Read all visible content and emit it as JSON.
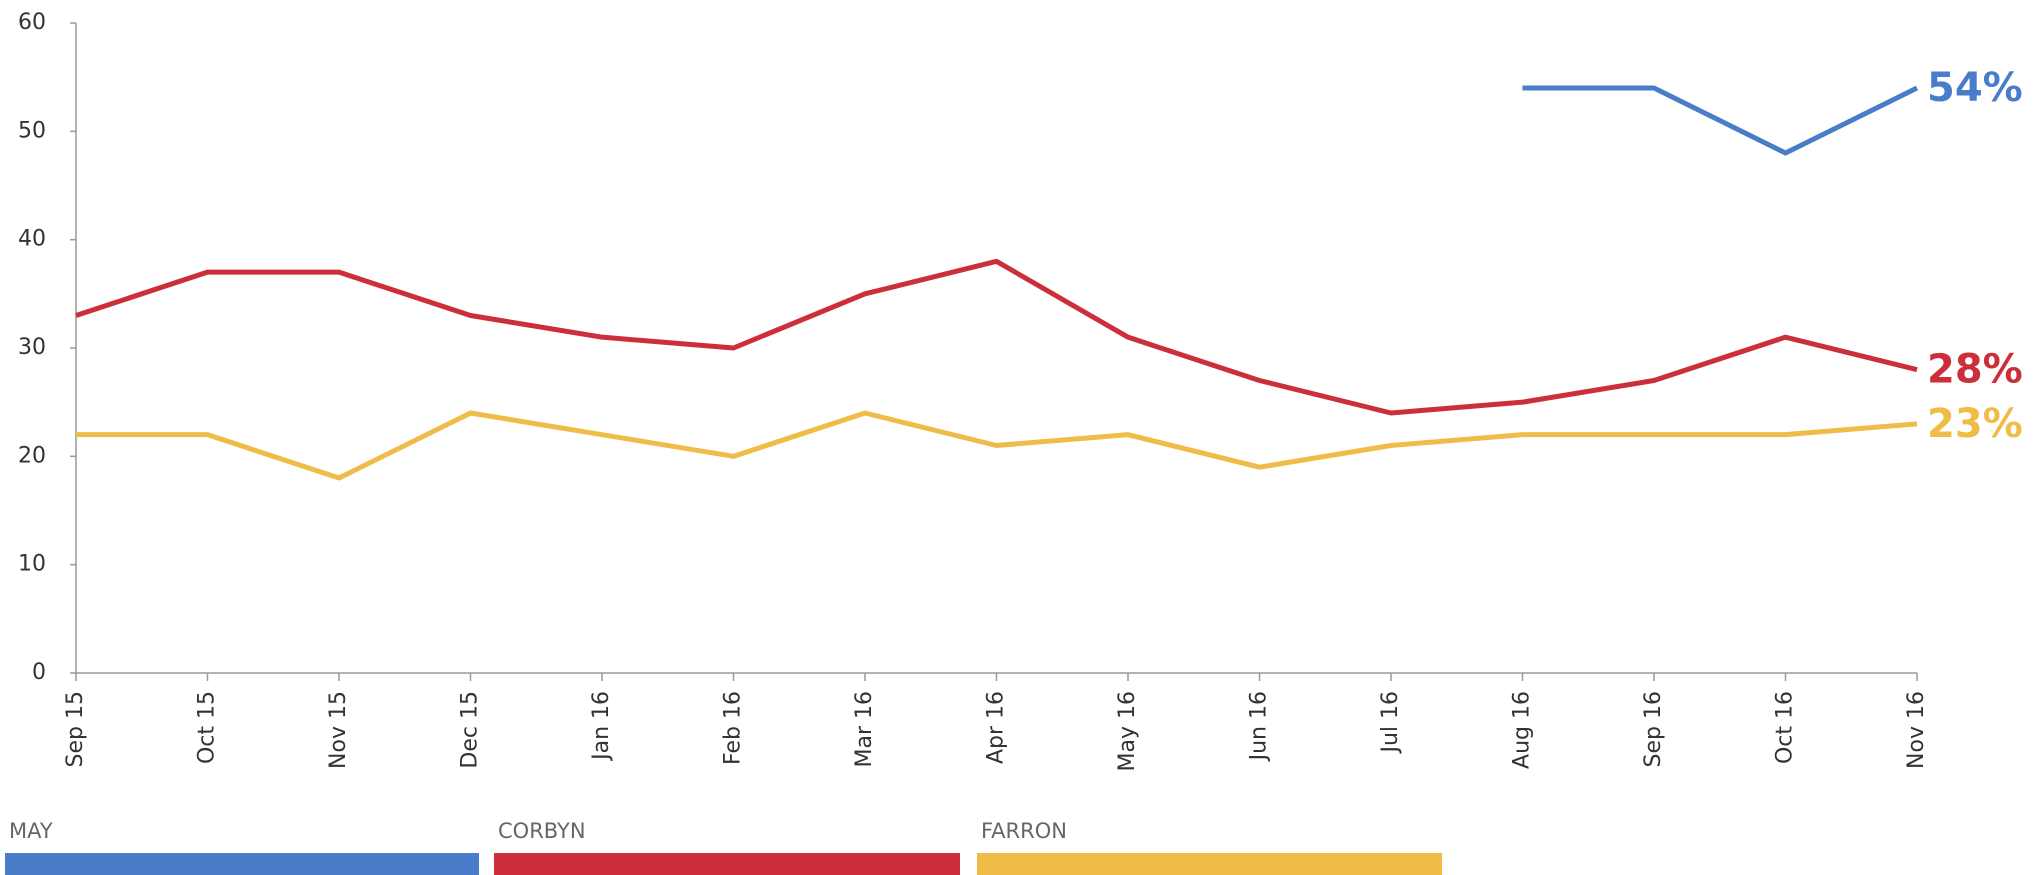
{
  "chart_data": {
    "type": "line",
    "categories": [
      "Sep 15",
      "Oct 15",
      "Nov 15",
      "Dec 15",
      "Jan 16",
      "Feb 16",
      "Mar 16",
      "Apr 16",
      "May 16",
      "Jun 16",
      "Jul 16",
      "Aug 16",
      "Sep 16",
      "Oct 16",
      "Nov 16"
    ],
    "series": [
      {
        "name": "MAY",
        "color": "#4a7dc9",
        "values": [
          null,
          null,
          null,
          null,
          null,
          null,
          null,
          null,
          null,
          null,
          null,
          54,
          54,
          48,
          54
        ],
        "value_labels": [
          null,
          null,
          null,
          null,
          null,
          null,
          null,
          null,
          null,
          null,
          null,
          null,
          null,
          null,
          "54%"
        ]
      },
      {
        "name": "CORBYN",
        "color": "#cc2f3a",
        "values": [
          33,
          37,
          37,
          33,
          31,
          30,
          35,
          38,
          31,
          27,
          24,
          25,
          27,
          31,
          28
        ],
        "value_labels": [
          null,
          null,
          null,
          null,
          null,
          null,
          null,
          null,
          null,
          null,
          null,
          null,
          null,
          null,
          "28%"
        ]
      },
      {
        "name": "FARRON",
        "color": "#f0bc48",
        "values": [
          22,
          22,
          18,
          24,
          22,
          20,
          24,
          21,
          22,
          19,
          21,
          22,
          22,
          22,
          23
        ],
        "value_labels": [
          null,
          null,
          null,
          null,
          null,
          null,
          null,
          null,
          null,
          null,
          null,
          null,
          null,
          null,
          "23%"
        ]
      }
    ],
    "ylim": [
      0,
      60
    ],
    "yticks": [
      0,
      10,
      20,
      30,
      40,
      50,
      60
    ],
    "legend": "bottom"
  }
}
